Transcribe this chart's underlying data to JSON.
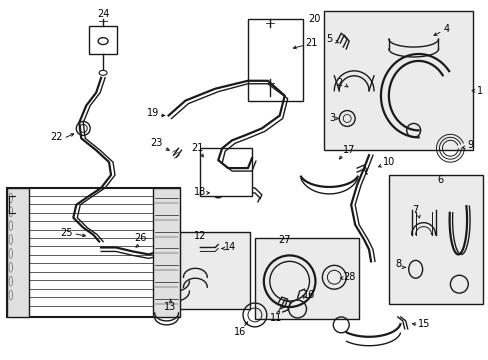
{
  "bg_color": "#ffffff",
  "box_fill": "#ebebeb",
  "line_color": "#1a1a1a",
  "text_color": "#000000",
  "fig_width": 4.89,
  "fig_height": 3.6,
  "dpi": 100
}
